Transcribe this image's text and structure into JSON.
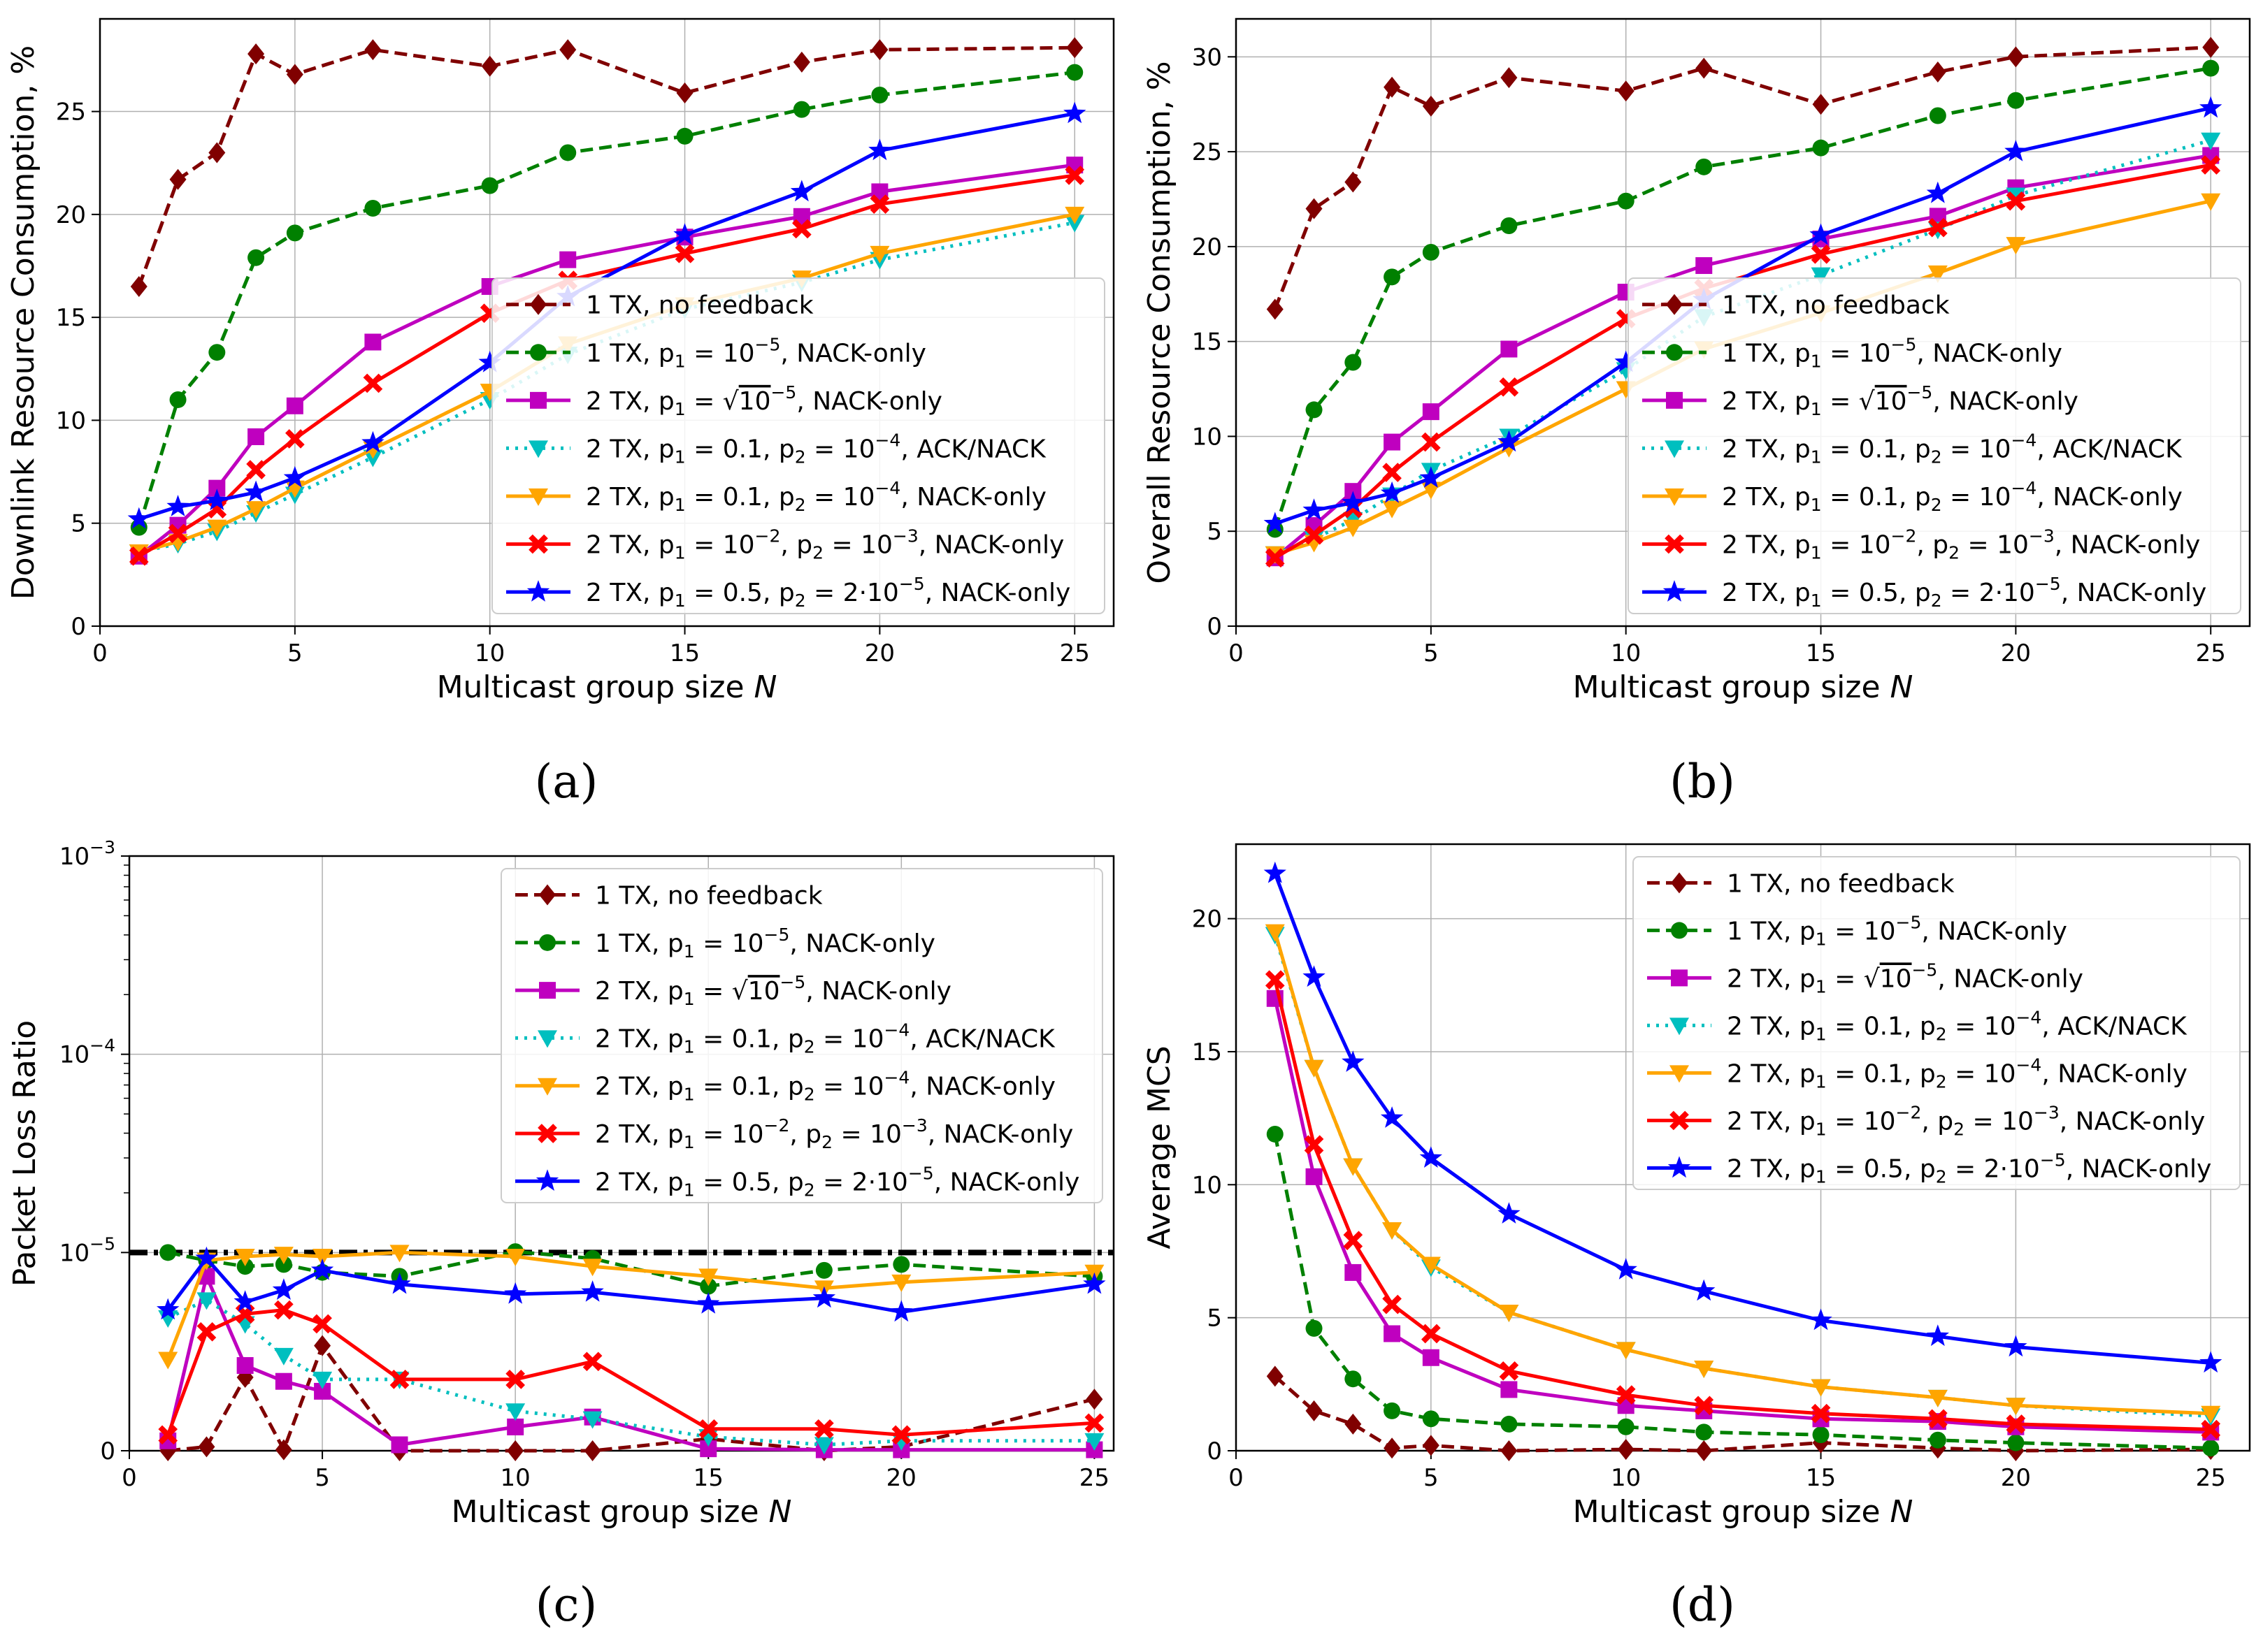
{
  "styles": {
    "s1": {
      "color": "#800000",
      "dash": "dashed",
      "marker": "diamond"
    },
    "s2": {
      "color": "#008000",
      "dash": "dashed",
      "marker": "circle"
    },
    "s3": {
      "color": "#bf00bf",
      "dash": "solid",
      "marker": "square"
    },
    "s4": {
      "color": "#00bfbf",
      "dash": "dotted",
      "marker": "tri-down"
    },
    "s5": {
      "color": "#ffa500",
      "dash": "solid",
      "marker": "tri-down"
    },
    "s6": {
      "color": "#ff0000",
      "dash": "solid",
      "marker": "x"
    },
    "s7": {
      "color": "#0000ff",
      "dash": "solid",
      "marker": "star"
    }
  },
  "legend": [
    {
      "id": "s1",
      "parts": [
        "1 TX, no feedback"
      ]
    },
    {
      "id": "s2",
      "parts": [
        "1 TX, p",
        "1",
        " = 10",
        "−5",
        ", NACK-only"
      ]
    },
    {
      "id": "s3",
      "parts": [
        "2 TX, p",
        "1",
        " = ",
        "10",
        "−5",
        ", NACK-only"
      ]
    },
    {
      "id": "s4",
      "parts": [
        "2 TX, p",
        "1",
        " = 0.1, p",
        "2",
        " = 10",
        "−4",
        ", ACK/NACK"
      ]
    },
    {
      "id": "s5",
      "parts": [
        "2 TX, p",
        "1",
        " = 0.1, p",
        "2",
        " = 10",
        "−4",
        ", NACK-only"
      ]
    },
    {
      "id": "s6",
      "parts": [
        "2 TX, p",
        "1",
        " = 10",
        "−2",
        ", p",
        "2",
        " = 10",
        "−3",
        ", NACK-only"
      ]
    },
    {
      "id": "s7",
      "parts": [
        "2 TX, p",
        "1",
        " = 0.5, p",
        "2",
        " = 2·10",
        "−5",
        ", NACK-only"
      ]
    }
  ],
  "chart_data": [
    {
      "id": "a",
      "caption": "(a)",
      "type": "line",
      "xlabel": "Multicast group size N",
      "ylabel": "Downlink Resource Consumption, %",
      "xlim": [
        0,
        26
      ],
      "ylim": [
        0,
        29.5
      ],
      "xticks": [
        0,
        5,
        10,
        15,
        20,
        25
      ],
      "yticks": [
        0,
        5,
        10,
        15,
        20,
        25
      ],
      "legend_position": "lower-right",
      "x": [
        1,
        2,
        3,
        4,
        5,
        7,
        10,
        12,
        15,
        18,
        20,
        25
      ],
      "series": [
        {
          "id": "s1",
          "values": [
            16.5,
            21.7,
            23.0,
            27.8,
            26.8,
            28.0,
            27.2,
            28.0,
            25.9,
            27.4,
            28.0,
            28.1
          ]
        },
        {
          "id": "s2",
          "values": [
            4.8,
            11.0,
            13.3,
            17.9,
            19.1,
            20.3,
            21.4,
            23.0,
            23.8,
            25.1,
            25.8,
            26.9
          ]
        },
        {
          "id": "s3",
          "values": [
            3.4,
            4.9,
            6.7,
            9.2,
            10.7,
            13.8,
            16.5,
            17.8,
            18.9,
            19.9,
            21.1,
            22.4
          ]
        },
        {
          "id": "s4",
          "values": [
            3.6,
            4.0,
            4.6,
            5.5,
            6.4,
            8.2,
            11.0,
            13.2,
            15.4,
            16.7,
            17.8,
            19.6
          ]
        },
        {
          "id": "s5",
          "values": [
            3.6,
            4.1,
            4.8,
            5.7,
            6.7,
            8.6,
            11.4,
            13.7,
            15.6,
            16.9,
            18.1,
            20.0
          ]
        },
        {
          "id": "s6",
          "values": [
            3.4,
            4.5,
            5.7,
            7.6,
            9.1,
            11.8,
            15.2,
            16.8,
            18.1,
            19.3,
            20.5,
            21.9
          ]
        },
        {
          "id": "s7",
          "values": [
            5.2,
            5.8,
            6.1,
            6.5,
            7.2,
            8.9,
            12.8,
            16.0,
            19.0,
            21.1,
            23.1,
            24.9
          ]
        }
      ]
    },
    {
      "id": "b",
      "caption": "(b)",
      "type": "line",
      "xlabel": "Multicast group size N",
      "ylabel": "Overall Resource Consumption, %",
      "xlim": [
        0,
        26
      ],
      "ylim": [
        0,
        32
      ],
      "xticks": [
        0,
        5,
        10,
        15,
        20,
        25
      ],
      "yticks": [
        0,
        5,
        10,
        15,
        20,
        25,
        30
      ],
      "legend_position": "lower-right",
      "x": [
        1,
        2,
        3,
        4,
        5,
        7,
        10,
        12,
        15,
        18,
        20,
        25
      ],
      "series": [
        {
          "id": "s1",
          "values": [
            16.7,
            22.0,
            23.4,
            28.4,
            27.4,
            28.9,
            28.2,
            29.4,
            27.5,
            29.2,
            30.0,
            30.5
          ]
        },
        {
          "id": "s2",
          "values": [
            5.1,
            11.4,
            13.9,
            18.4,
            19.7,
            21.1,
            22.4,
            24.2,
            25.2,
            26.9,
            27.7,
            29.4
          ]
        },
        {
          "id": "s3",
          "values": [
            3.6,
            5.3,
            7.1,
            9.7,
            11.3,
            14.6,
            17.6,
            19.0,
            20.4,
            21.6,
            23.1,
            24.8
          ]
        },
        {
          "id": "s4",
          "values": [
            3.8,
            4.6,
            5.6,
            6.9,
            8.2,
            10.0,
            13.5,
            16.3,
            18.5,
            20.9,
            22.7,
            25.6
          ]
        },
        {
          "id": "s5",
          "values": [
            3.8,
            4.4,
            5.2,
            6.2,
            7.2,
            9.4,
            12.5,
            14.6,
            16.5,
            18.6,
            20.1,
            22.4
          ]
        },
        {
          "id": "s6",
          "values": [
            3.6,
            4.8,
            6.2,
            8.1,
            9.7,
            12.6,
            16.2,
            17.8,
            19.6,
            21.0,
            22.4,
            24.3
          ]
        },
        {
          "id": "s7",
          "values": [
            5.4,
            6.1,
            6.5,
            7.0,
            7.8,
            9.7,
            13.9,
            17.2,
            20.6,
            22.8,
            25.0,
            27.3
          ]
        }
      ]
    },
    {
      "id": "c",
      "caption": "(c)",
      "type": "line",
      "xlabel": "Multicast group size N",
      "ylabel": "Packet Loss Ratio",
      "yscale": "symlog",
      "linthresh": 1e-05,
      "xlim": [
        0,
        25.5
      ],
      "ylim": [
        0,
        0.001
      ],
      "xticks": [
        0,
        5,
        10,
        15,
        20,
        25
      ],
      "yticks": [
        {
          "v": 0,
          "label": "0"
        },
        {
          "v": 1e-05,
          "mant": "10",
          "exp": "−5"
        },
        {
          "v": 0.0001,
          "mant": "10",
          "exp": "−4"
        },
        {
          "v": 0.001,
          "mant": "10",
          "exp": "−3"
        }
      ],
      "reference_line": {
        "value": 1e-05,
        "style": "dash-dot",
        "color": "#000000"
      },
      "legend_position": "upper-right",
      "x": [
        1,
        2,
        3,
        4,
        5,
        7,
        10,
        12,
        15,
        18,
        20,
        25
      ],
      "series": [
        {
          "id": "s1",
          "values": [
            0,
            2e-07,
            3.7e-06,
            5e-08,
            5.3e-06,
            0,
            0,
            0,
            6e-07,
            0,
            2e-07,
            2.6e-06
          ]
        },
        {
          "id": "s2",
          "values": [
            1e-05,
            9.6e-06,
            9.3e-06,
            9.4e-06,
            9e-06,
            8.8e-06,
            1.01e-05,
            9.7e-06,
            8.3e-06,
            9.1e-06,
            9.4e-06,
            8.8e-06
          ]
        },
        {
          "id": "s3",
          "values": [
            5e-07,
            8.8e-06,
            4.3e-06,
            3.5e-06,
            3e-06,
            3e-07,
            1.2e-06,
            1.7e-06,
            1e-07,
            5e-08,
            5e-08,
            5e-08
          ]
        },
        {
          "id": "s4",
          "values": [
            6.7e-06,
            7.6e-06,
            6.4e-06,
            4.8e-06,
            3.6e-06,
            3.6e-06,
            2e-06,
            1.6e-06,
            7e-07,
            3e-07,
            5e-07,
            5e-07
          ]
        },
        {
          "id": "s5",
          "values": [
            4.6e-06,
            9.6e-06,
            9.8e-06,
            9.9e-06,
            9.8e-06,
            1e-05,
            9.8e-06,
            9.3e-06,
            8.8e-06,
            8.2e-06,
            8.5e-06,
            9e-06
          ]
        },
        {
          "id": "s6",
          "values": [
            8e-07,
            6e-06,
            6.9e-06,
            7.1e-06,
            6.4e-06,
            3.6e-06,
            3.6e-06,
            4.5e-06,
            1.1e-06,
            1.1e-06,
            8e-07,
            1.4e-06
          ]
        },
        {
          "id": "s7",
          "values": [
            7.1e-06,
            9.7e-06,
            7.5e-06,
            8.1e-06,
            9.1e-06,
            8.4e-06,
            7.9e-06,
            8e-06,
            7.4e-06,
            7.7e-06,
            7e-06,
            8.4e-06
          ]
        }
      ]
    },
    {
      "id": "d",
      "caption": "(d)",
      "type": "line",
      "xlabel": "Multicast group size N",
      "ylabel": "Average MCS",
      "xlim": [
        0,
        26
      ],
      "ylim": [
        0,
        22.8
      ],
      "xticks": [
        0,
        5,
        10,
        15,
        20,
        25
      ],
      "yticks": [
        0,
        5,
        10,
        15,
        20
      ],
      "legend_position": "upper-right",
      "x": [
        1,
        2,
        3,
        4,
        5,
        7,
        10,
        12,
        15,
        18,
        20,
        25
      ],
      "series": [
        {
          "id": "s1",
          "values": [
            2.8,
            1.5,
            1.0,
            0.1,
            0.2,
            0.0,
            0.05,
            0.0,
            0.3,
            0.1,
            0.0,
            0.05
          ]
        },
        {
          "id": "s2",
          "values": [
            11.9,
            4.6,
            2.7,
            1.5,
            1.2,
            1.0,
            0.9,
            0.7,
            0.6,
            0.4,
            0.3,
            0.1
          ]
        },
        {
          "id": "s3",
          "values": [
            17.0,
            10.3,
            6.7,
            4.4,
            3.5,
            2.3,
            1.7,
            1.5,
            1.2,
            1.1,
            0.9,
            0.7
          ]
        },
        {
          "id": "s4",
          "values": [
            19.4,
            14.4,
            10.7,
            8.3,
            6.9,
            5.2,
            3.8,
            3.1,
            2.4,
            2.0,
            1.7,
            1.3
          ]
        },
        {
          "id": "s5",
          "values": [
            19.5,
            14.4,
            10.7,
            8.3,
            7.0,
            5.2,
            3.8,
            3.1,
            2.4,
            2.0,
            1.7,
            1.4
          ]
        },
        {
          "id": "s6",
          "values": [
            17.7,
            11.5,
            7.9,
            5.5,
            4.4,
            3.0,
            2.1,
            1.7,
            1.4,
            1.2,
            1.0,
            0.8
          ]
        },
        {
          "id": "s7",
          "values": [
            21.7,
            17.8,
            14.6,
            12.5,
            11.0,
            8.9,
            6.8,
            6.0,
            4.9,
            4.3,
            3.9,
            3.3
          ]
        }
      ]
    }
  ]
}
